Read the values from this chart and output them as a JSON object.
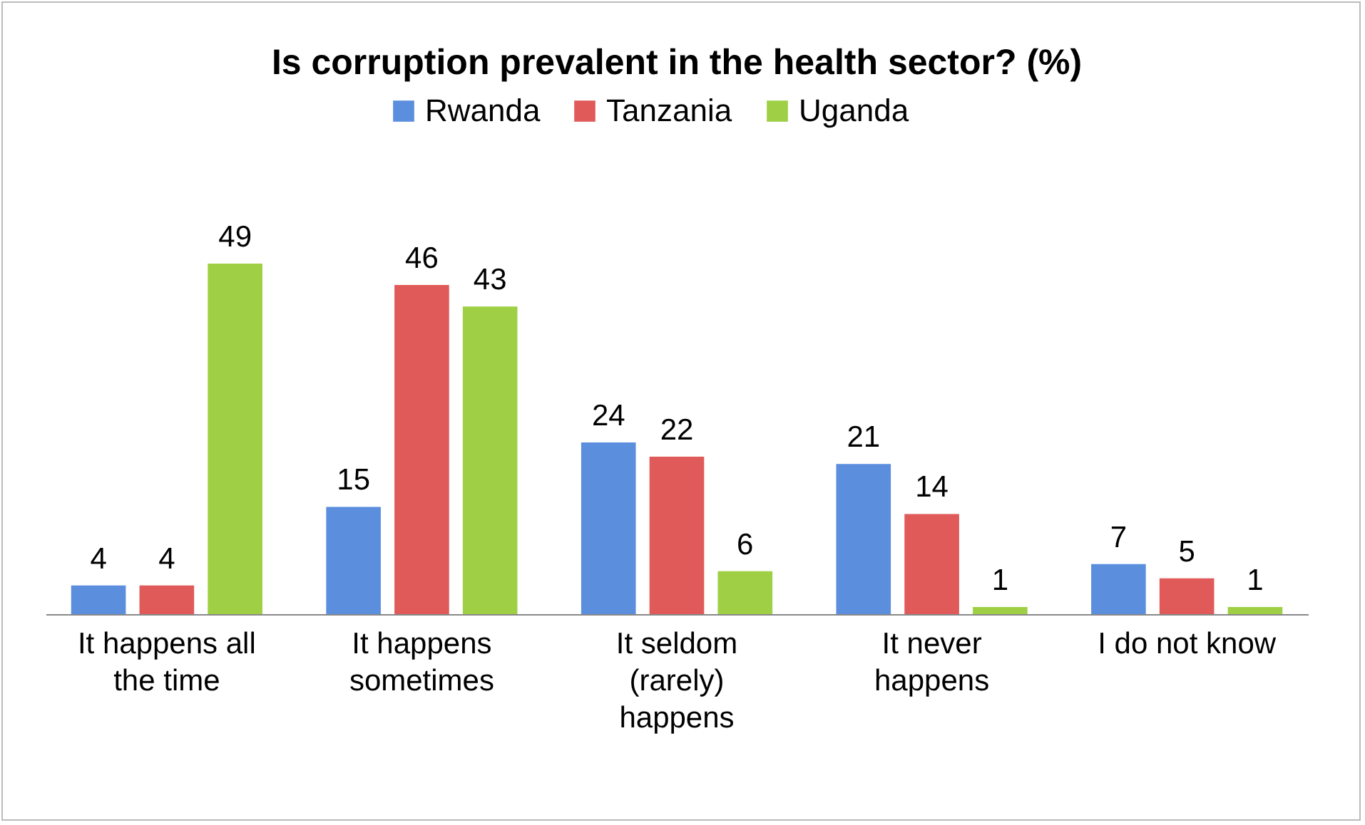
{
  "chart_data": {
    "type": "bar",
    "title": "Is corruption prevalent in the health sector? (%)",
    "categories": [
      "It happens all the time",
      "It happens sometimes",
      "It seldom (rarely) happens",
      "It never happens",
      "I do not know"
    ],
    "series": [
      {
        "name": "Rwanda",
        "color": "#5b8fde",
        "values": [
          4,
          15,
          24,
          21,
          7
        ]
      },
      {
        "name": "Tanzania",
        "color": "#e05a5a",
        "values": [
          4,
          46,
          22,
          14,
          5
        ]
      },
      {
        "name": "Uganda",
        "color": "#9fcf45",
        "values": [
          49,
          43,
          6,
          1,
          1
        ]
      }
    ],
    "data_labels": true,
    "legend": "top"
  }
}
